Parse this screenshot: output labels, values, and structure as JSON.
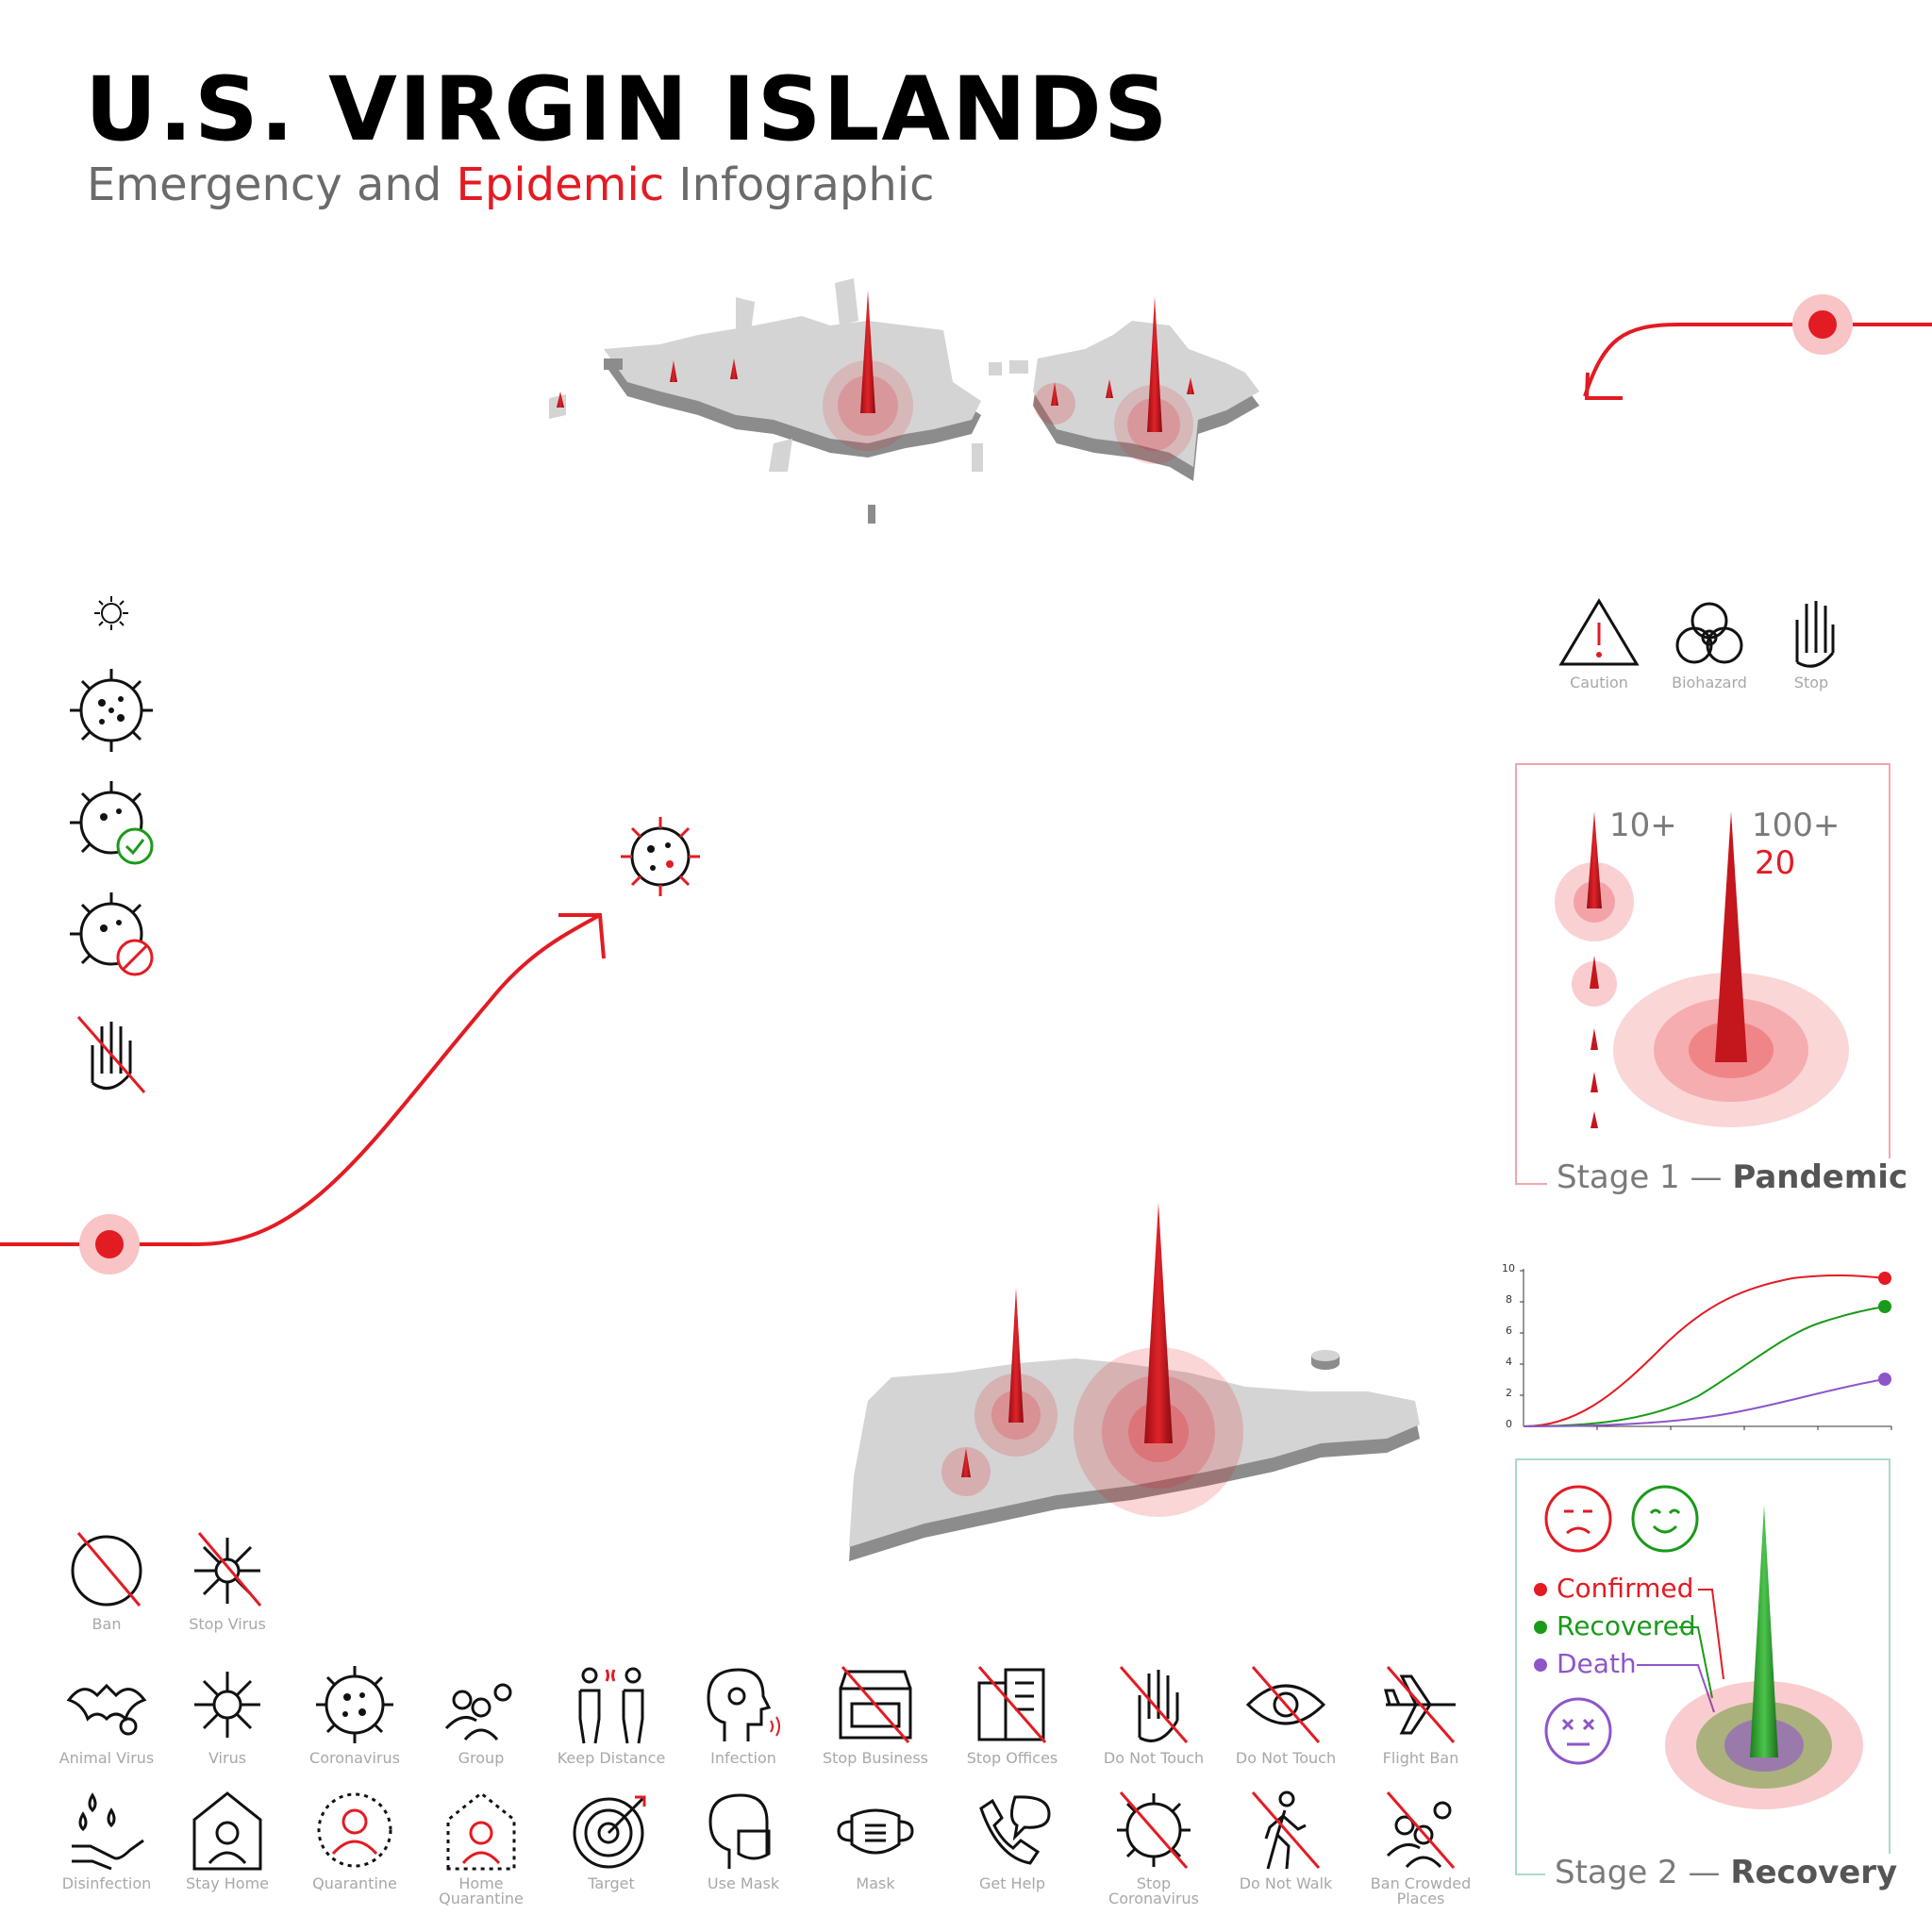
{
  "header": {
    "title": "U.S. VIRGIN ISLANDS",
    "subtitle_part1": "Emergency and ",
    "subtitle_part2": "Epidemic",
    "subtitle_part3": " Infographic"
  },
  "colors": {
    "accent": "#e31b23",
    "land": "#d4d4d4",
    "land_side": "#8c8c8c",
    "confirmed": "#e31b23",
    "recovered": "#1a9a1a",
    "death": "#8e55c9"
  },
  "top_icons": [
    {
      "name": "Caution",
      "icon": "caution-icon"
    },
    {
      "name": "Biohazard",
      "icon": "biohazard-icon"
    },
    {
      "name": "Stop",
      "icon": "stop-hand-icon"
    }
  ],
  "stage1": {
    "label_prefix": "Stage 1 — ",
    "label_bold": "Pandemic",
    "small_value": "10+",
    "big_value": "100+",
    "big_value_red": "20"
  },
  "stage2": {
    "label_prefix": "Stage 2 — ",
    "label_bold": "Recovery",
    "legend": [
      {
        "label": "Confirmed",
        "color": "#e31b23"
      },
      {
        "label": "Recovered",
        "color": "#1a9a1a"
      },
      {
        "label": "Death",
        "color": "#8e55c9"
      }
    ]
  },
  "mini_chart": {
    "y_ticks": [
      "10",
      "8",
      "6",
      "4",
      "2",
      "0"
    ]
  },
  "bottom_icons_row0": [
    {
      "label": "Ban",
      "icon": "ban-icon"
    },
    {
      "label": "Stop Virus",
      "icon": "stop-virus-icon"
    }
  ],
  "bottom_icons_row1": [
    {
      "label": "Animal Virus",
      "icon": "bat-virus-icon"
    },
    {
      "label": "Virus",
      "icon": "virus-icon"
    },
    {
      "label": "Coronavirus",
      "icon": "coronavirus-icon"
    },
    {
      "label": "Group",
      "icon": "group-icon"
    },
    {
      "label": "Keep Distance",
      "icon": "keep-distance-icon"
    },
    {
      "label": "Infection",
      "icon": "infection-icon"
    },
    {
      "label": "Stop Business",
      "icon": "stop-business-icon"
    },
    {
      "label": "Stop Offices",
      "icon": "stop-offices-icon"
    },
    {
      "label": "Do Not Touch",
      "icon": "do-not-touch-hand-icon"
    },
    {
      "label": "Do Not Touch",
      "icon": "do-not-touch-eye-icon"
    },
    {
      "label": "Flight Ban",
      "icon": "flight-ban-icon"
    }
  ],
  "bottom_icons_row2": [
    {
      "label": "Disinfection",
      "icon": "disinfection-icon"
    },
    {
      "label": "Stay Home",
      "icon": "stay-home-icon"
    },
    {
      "label": "Quarantine",
      "icon": "quarantine-icon"
    },
    {
      "label": "Home Quarantine",
      "icon": "home-quarantine-icon"
    },
    {
      "label": "Target",
      "icon": "target-icon"
    },
    {
      "label": "Use Mask",
      "icon": "use-mask-icon"
    },
    {
      "label": "Mask",
      "icon": "mask-icon"
    },
    {
      "label": "Get Help",
      "icon": "get-help-icon"
    },
    {
      "label": "Stop Coronavirus",
      "icon": "stop-coronavirus-icon"
    },
    {
      "label": "Do Not Walk",
      "icon": "do-not-walk-icon"
    },
    {
      "label": "Ban Crowded Places",
      "icon": "ban-crowded-places-icon"
    }
  ]
}
